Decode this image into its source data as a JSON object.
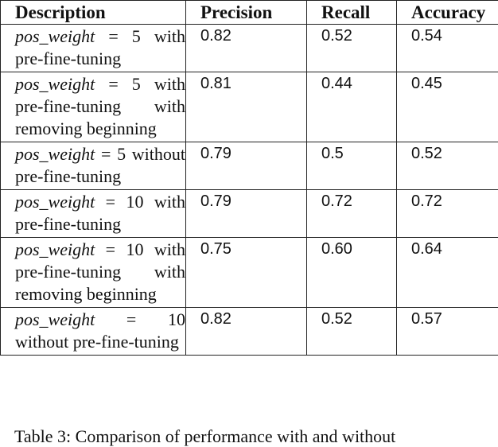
{
  "table": {
    "headers": [
      "Description",
      "Precision",
      "Recall",
      "Accuracy"
    ],
    "rows": [
      {
        "param": "pos_weight",
        "desc": "= 5 with pre-fine-tuning",
        "precision": "0.82",
        "recall": "0.52",
        "accuracy": "0.54"
      },
      {
        "param": "pos_weight",
        "desc": "= 5 with pre-fine-tuning with removing beginning",
        "precision": "0.81",
        "recall": "0.44",
        "accuracy": "0.45"
      },
      {
        "param": "pos_weight",
        "desc": "= 5 without pre-fine-tuning",
        "precision": "0.79",
        "recall": "0.5",
        "accuracy": "0.52"
      },
      {
        "param": "pos_weight",
        "desc": "= 10 with pre-fine-tuning",
        "precision": "0.79",
        "recall": "0.72",
        "accuracy": "0.72"
      },
      {
        "param": "pos_weight",
        "desc": "= 10 with pre-fine-tuning with removing beginning",
        "precision": "0.75",
        "recall": "0.60",
        "accuracy": "0.64"
      },
      {
        "param": "pos_weight",
        "desc": "= 10 without pre-fine-tuning",
        "precision": "0.82",
        "recall": "0.52",
        "accuracy": "0.57"
      }
    ]
  },
  "caption": "Table 3: Comparison of performance with and without"
}
